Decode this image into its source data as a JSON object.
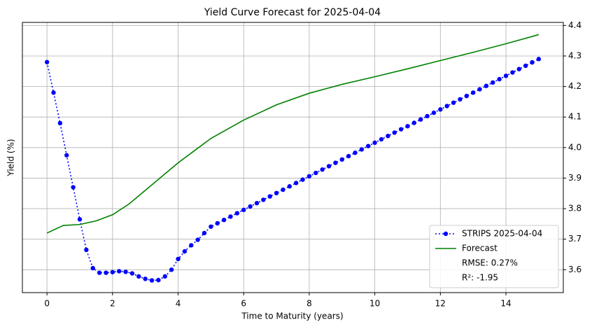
{
  "chart_data": {
    "type": "line",
    "title": "Yield Curve Forecast for 2025-04-04",
    "xlabel": "Time to Maturity (years)",
    "ylabel": "Yield (%)",
    "xlim": [
      -0.75,
      15.75
    ],
    "ylim": [
      3.525,
      4.41
    ],
    "xticks": [
      0,
      2,
      4,
      6,
      8,
      10,
      12,
      14
    ],
    "yticks": [
      3.6,
      3.7,
      3.8,
      3.9,
      {
        "value": 4,
        "label": "4.0"
      },
      4.1,
      4.2,
      4.3,
      4.4
    ],
    "y_axis_side": "right",
    "grid": true,
    "legend": "lower right",
    "annotations": [
      "RMSE: 0.27%",
      "R²: -1.95"
    ],
    "series": [
      {
        "name": "STRIPS 2025-04-04",
        "color": "#0000ff",
        "linestyle": "dotted",
        "marker": "circle",
        "x": [
          0,
          0.2,
          0.4,
          0.6,
          0.8,
          1.0,
          1.2,
          1.4,
          1.6,
          1.8,
          2.0,
          2.2,
          2.4,
          2.6,
          2.8,
          3.0,
          3.2,
          3.4,
          3.6,
          3.8,
          4.0,
          4.2,
          4.4,
          4.6,
          4.8,
          5.0,
          5.2,
          5.4,
          5.6,
          5.8,
          6.0,
          6.2,
          6.4,
          6.6,
          6.8,
          7.0,
          7.2,
          7.4,
          7.6,
          7.8,
          8.0,
          8.2,
          8.4,
          8.6,
          8.8,
          9.0,
          9.2,
          9.4,
          9.6,
          9.8,
          10.0,
          10.2,
          10.4,
          10.6,
          10.8,
          11.0,
          11.2,
          11.4,
          11.6,
          11.8,
          12.0,
          12.2,
          12.4,
          12.6,
          12.8,
          13.0,
          13.2,
          13.4,
          13.6,
          13.8,
          14.0,
          14.2,
          14.4,
          14.6,
          14.8,
          15.0
        ],
        "values": [
          4.28,
          4.18,
          4.08,
          3.975,
          3.87,
          3.765,
          3.665,
          3.605,
          3.59,
          3.59,
          3.592,
          3.595,
          3.593,
          3.588,
          3.578,
          3.57,
          3.565,
          3.566,
          3.578,
          3.6,
          3.635,
          3.66,
          3.68,
          3.698,
          3.72,
          3.741,
          3.752,
          3.763,
          3.774,
          3.785,
          3.796,
          3.807,
          3.818,
          3.829,
          3.84,
          3.851,
          3.862,
          3.873,
          3.884,
          3.895,
          3.906,
          3.917,
          3.928,
          3.939,
          3.95,
          3.961,
          3.972,
          3.983,
          3.994,
          4.005,
          4.016,
          4.027,
          4.038,
          4.049,
          4.06,
          4.07,
          4.081,
          4.092,
          4.103,
          4.114,
          4.125,
          4.136,
          4.147,
          4.158,
          4.169,
          4.18,
          4.191,
          4.202,
          4.213,
          4.224,
          4.235,
          4.246,
          4.257,
          4.268,
          4.279,
          4.29
        ]
      },
      {
        "name": "Forecast",
        "color": "#008000",
        "linestyle": "solid",
        "x": [
          0,
          0.5,
          1.0,
          1.5,
          2,
          2.5,
          3,
          3.5,
          4,
          4.5,
          5,
          5.5,
          6,
          7,
          8,
          9,
          10,
          11,
          12,
          13,
          14,
          15
        ],
        "values": [
          3.72,
          3.745,
          3.748,
          3.76,
          3.78,
          3.815,
          3.86,
          3.905,
          3.95,
          3.99,
          4.03,
          4.06,
          4.09,
          4.14,
          4.178,
          4.207,
          4.232,
          4.258,
          4.285,
          4.312,
          4.34,
          4.37
        ]
      }
    ]
  }
}
